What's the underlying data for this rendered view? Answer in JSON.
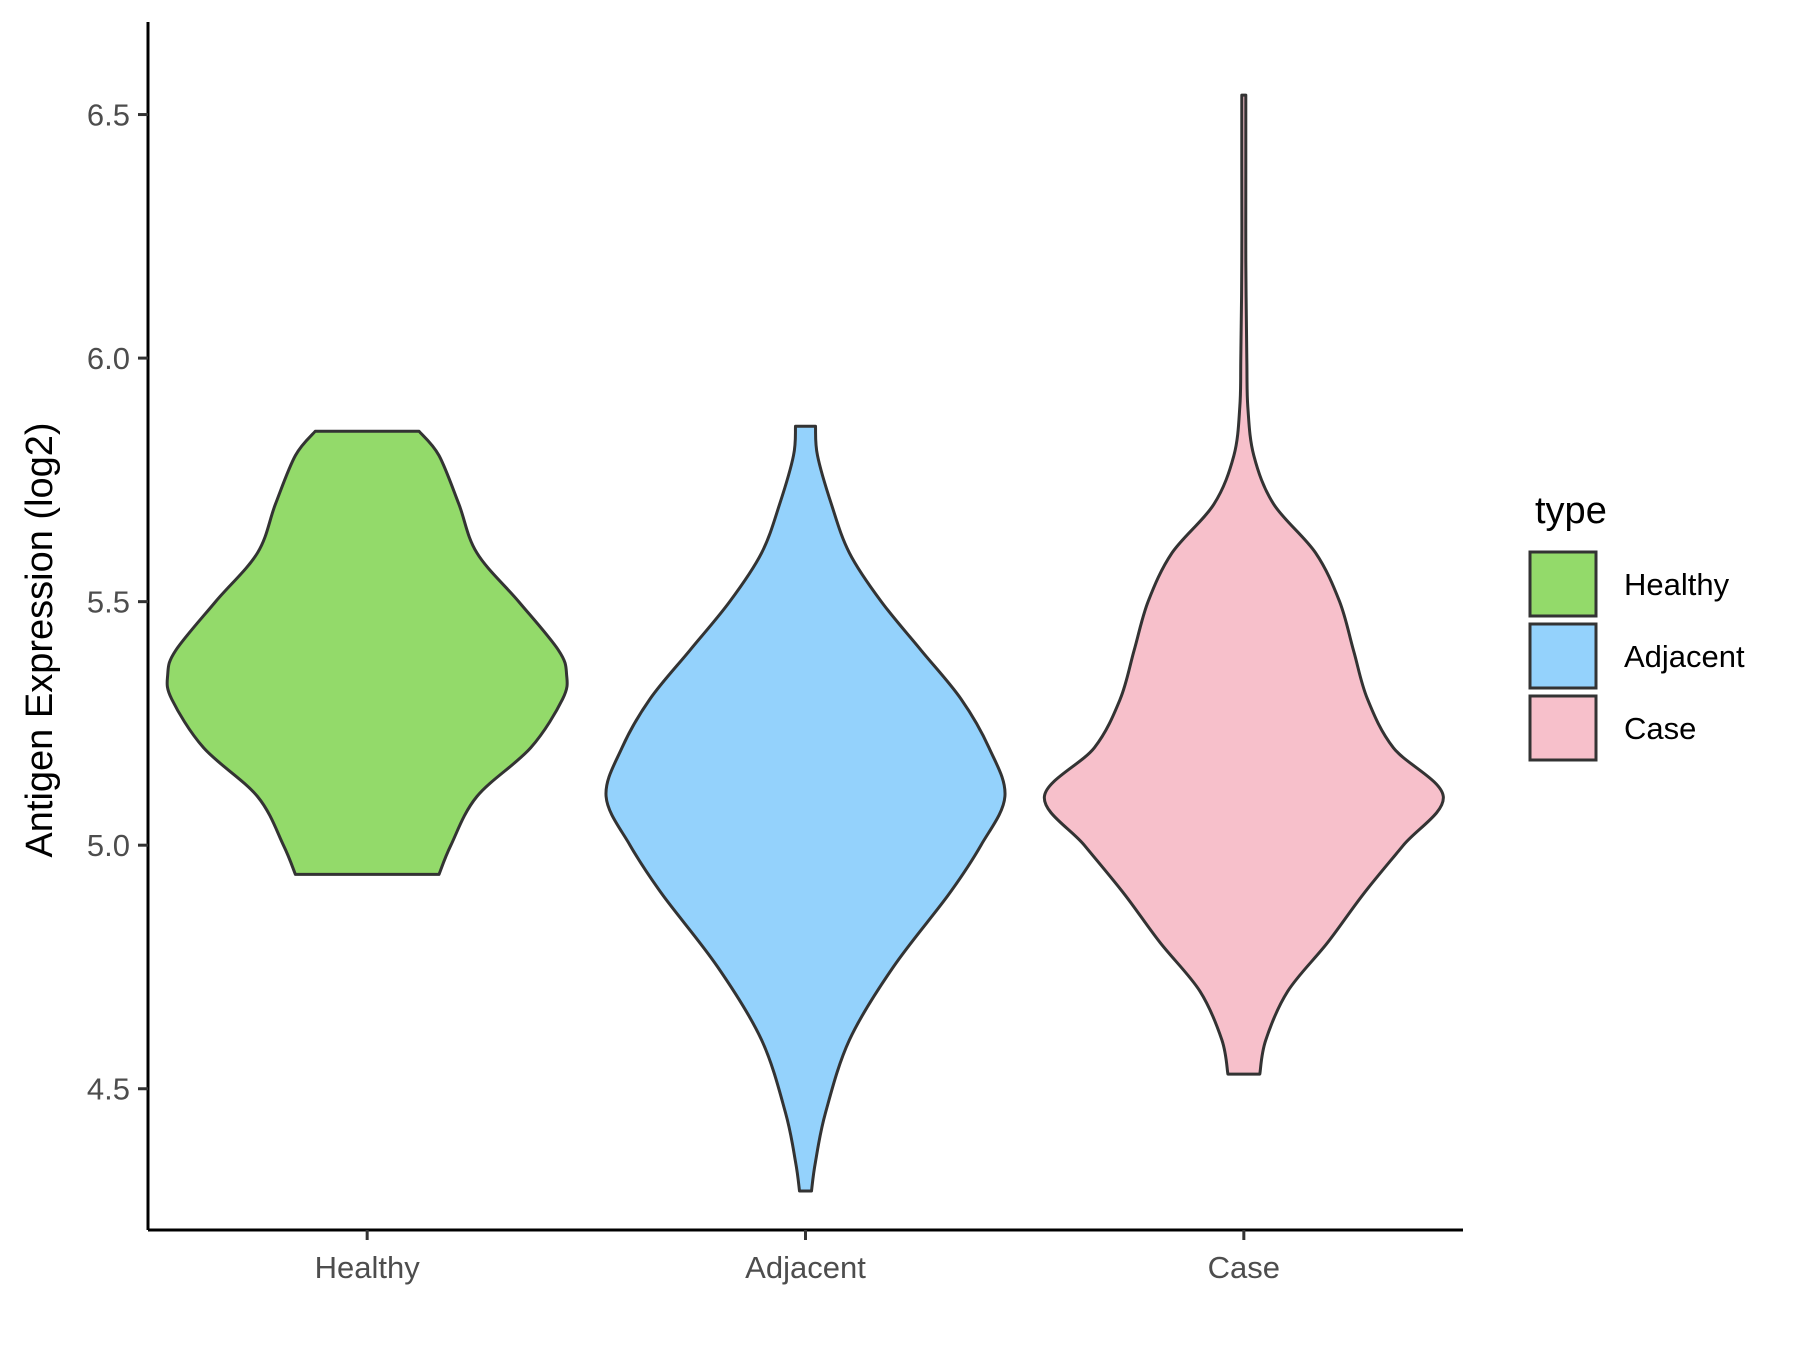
{
  "chart_data": {
    "type": "violin",
    "title": "",
    "xlabel": "",
    "ylabel": "Antigen Expression (log2)",
    "ylim": [
      4.21,
      6.69
    ],
    "yticks": [
      "4.5",
      "5.0",
      "5.5",
      "6.0",
      "6.5"
    ],
    "grid": false,
    "categories": [
      "Healthy",
      "Adjacent",
      "Case"
    ],
    "legend": {
      "title": "type",
      "position": "right",
      "entries": [
        "Healthy",
        "Adjacent",
        "Case"
      ]
    },
    "series": [
      {
        "name": "Healthy",
        "color": "#93DA6A",
        "y_min": 4.94,
        "y_max": 5.85,
        "profile": [
          [
            4.94,
            0.36
          ],
          [
            5.0,
            0.42
          ],
          [
            5.1,
            0.55
          ],
          [
            5.2,
            0.82
          ],
          [
            5.3,
            0.98
          ],
          [
            5.35,
            1.0
          ],
          [
            5.4,
            0.96
          ],
          [
            5.5,
            0.76
          ],
          [
            5.6,
            0.55
          ],
          [
            5.7,
            0.46
          ],
          [
            5.8,
            0.36
          ],
          [
            5.85,
            0.26
          ]
        ]
      },
      {
        "name": "Adjacent",
        "color": "#94D2FC",
        "y_min": 4.29,
        "y_max": 5.86,
        "profile": [
          [
            4.29,
            0.03
          ],
          [
            4.35,
            0.05
          ],
          [
            4.45,
            0.1
          ],
          [
            4.6,
            0.22
          ],
          [
            4.75,
            0.44
          ],
          [
            4.9,
            0.72
          ],
          [
            5.0,
            0.88
          ],
          [
            5.1,
            1.0
          ],
          [
            5.2,
            0.92
          ],
          [
            5.3,
            0.78
          ],
          [
            5.4,
            0.58
          ],
          [
            5.5,
            0.38
          ],
          [
            5.6,
            0.22
          ],
          [
            5.7,
            0.13
          ],
          [
            5.8,
            0.06
          ],
          [
            5.86,
            0.05
          ]
        ]
      },
      {
        "name": "Case",
        "color": "#F7C0CB",
        "y_min": 4.53,
        "y_max": 6.54,
        "profile": [
          [
            4.53,
            0.08
          ],
          [
            4.6,
            0.11
          ],
          [
            4.7,
            0.22
          ],
          [
            4.8,
            0.42
          ],
          [
            4.9,
            0.6
          ],
          [
            5.0,
            0.8
          ],
          [
            5.1,
            1.0
          ],
          [
            5.2,
            0.75
          ],
          [
            5.3,
            0.62
          ],
          [
            5.4,
            0.55
          ],
          [
            5.5,
            0.48
          ],
          [
            5.6,
            0.36
          ],
          [
            5.7,
            0.15
          ],
          [
            5.8,
            0.05
          ],
          [
            5.9,
            0.02
          ],
          [
            6.0,
            0.015
          ],
          [
            6.2,
            0.01
          ],
          [
            6.4,
            0.01
          ],
          [
            6.54,
            0.01
          ]
        ]
      }
    ]
  }
}
